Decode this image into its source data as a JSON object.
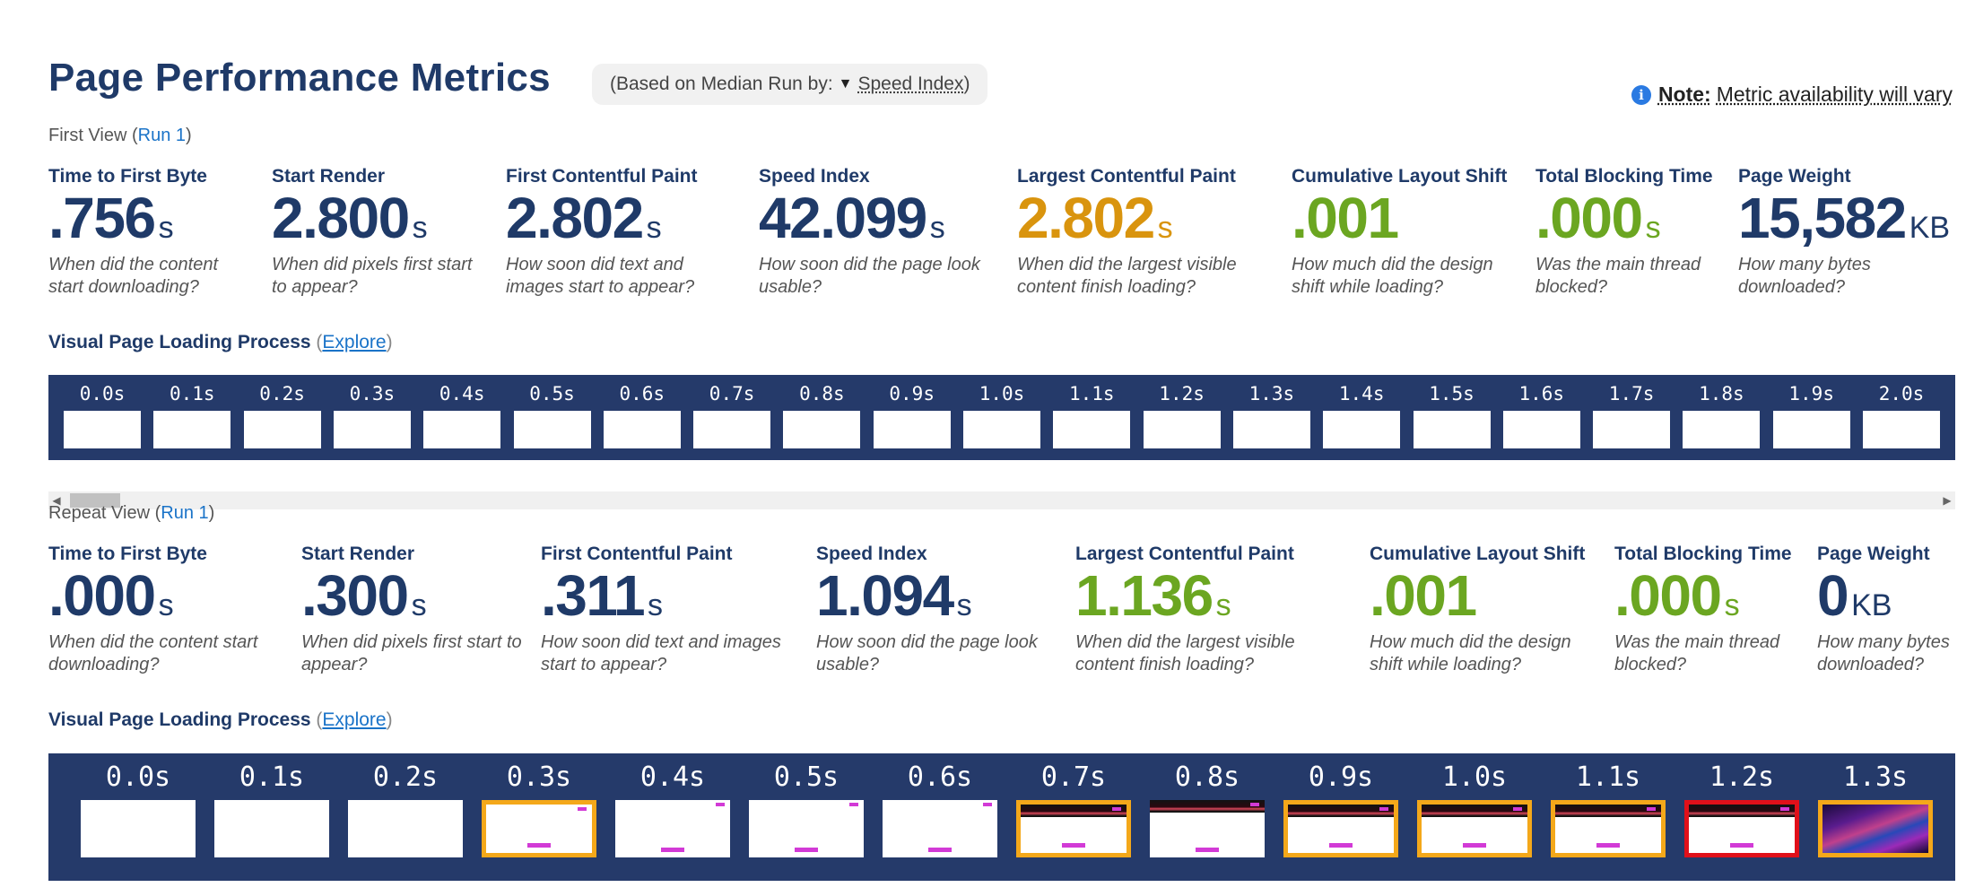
{
  "page": {
    "title": "Page Performance Metrics",
    "median_prefix": "(Based on Median Run by:",
    "median_caret": "▼",
    "median_metric": "Speed Index",
    "median_suffix": ")",
    "note_icon": "i",
    "note_bold": "Note:",
    "note_text": "Metric availability will vary"
  },
  "first_view": {
    "label": "First View (",
    "run": "Run 1",
    "close": ")",
    "metrics": [
      {
        "label": "Time to First Byte",
        "value": ".756",
        "unit": "s",
        "desc": "When did the content start downloading?",
        "color": "#1f3a68"
      },
      {
        "label": "Start Render",
        "value": "2.800",
        "unit": "s",
        "desc": "When did pixels first start to appear?",
        "color": "#1f3a68"
      },
      {
        "label": "First Contentful Paint",
        "value": "2.802",
        "unit": "s",
        "desc": "How soon did text and images start to appear?",
        "color": "#1f3a68"
      },
      {
        "label": "Speed Index",
        "value": "42.099",
        "unit": "s",
        "desc": "How soon did the page look usable?",
        "color": "#1f3a68"
      },
      {
        "label": "Largest Contentful Paint",
        "value": "2.802",
        "unit": "s",
        "desc": "When did the largest visible content finish loading?",
        "color": "#d9940e"
      },
      {
        "label": "Cumulative Layout Shift",
        "value": ".001",
        "unit": "",
        "desc": "How much did the design shift while loading?",
        "color": "#6ba621"
      },
      {
        "label": "Total Blocking Time",
        "value": ".000",
        "unit": "s",
        "desc": "Was the main thread blocked?",
        "color": "#6ba621"
      },
      {
        "label": "Page Weight",
        "value": "15,582",
        "unit": "KB",
        "desc": "How many bytes downloaded?",
        "color": "#1f3a68"
      }
    ],
    "visual_title": "Visual Page Loading Process",
    "visual_open": "(",
    "visual_link": "Explore",
    "visual_close": ")",
    "frames": [
      "0.0s",
      "0.1s",
      "0.2s",
      "0.3s",
      "0.4s",
      "0.5s",
      "0.6s",
      "0.7s",
      "0.8s",
      "0.9s",
      "1.0s",
      "1.1s",
      "1.2s",
      "1.3s",
      "1.4s",
      "1.5s",
      "1.6s",
      "1.7s",
      "1.8s",
      "1.9s",
      "2.0s"
    ]
  },
  "repeat_view": {
    "label": "Repeat View (",
    "run": "Run 1",
    "close": ")",
    "metrics": [
      {
        "label": "Time to First Byte",
        "value": ".000",
        "unit": "s",
        "desc": "When did the content start downloading?",
        "color": "#1f3a68"
      },
      {
        "label": "Start Render",
        "value": ".300",
        "unit": "s",
        "desc": "When did pixels first start to appear?",
        "color": "#1f3a68"
      },
      {
        "label": "First Contentful Paint",
        "value": ".311",
        "unit": "s",
        "desc": "How soon did text and images start to appear?",
        "color": "#1f3a68"
      },
      {
        "label": "Speed Index",
        "value": "1.094",
        "unit": "s",
        "desc": "How soon did the page look usable?",
        "color": "#1f3a68"
      },
      {
        "label": "Largest Contentful Paint",
        "value": "1.136",
        "unit": "s",
        "desc": "When did the largest visible content finish loading?",
        "color": "#6ba621"
      },
      {
        "label": "Cumulative Layout Shift",
        "value": ".001",
        "unit": "",
        "desc": "How much did the design shift while loading?",
        "color": "#6ba621"
      },
      {
        "label": "Total Blocking Time",
        "value": ".000",
        "unit": "s",
        "desc": "Was the main thread blocked?",
        "color": "#6ba621"
      },
      {
        "label": "Page Weight",
        "value": "0",
        "unit": "KB",
        "desc": "How many bytes downloaded?",
        "color": "#1f3a68"
      }
    ],
    "visual_title": "Visual Page Loading Process",
    "visual_open": "(",
    "visual_link": "Explore",
    "visual_close": ")",
    "frames": [
      {
        "time": "0.0s",
        "state": "blank"
      },
      {
        "time": "0.1s",
        "state": "blank"
      },
      {
        "time": "0.2s",
        "state": "blank"
      },
      {
        "time": "0.3s",
        "state": "changed"
      },
      {
        "time": "0.4s",
        "state": "light"
      },
      {
        "time": "0.5s",
        "state": "light"
      },
      {
        "time": "0.6s",
        "state": "light"
      },
      {
        "time": "0.7s",
        "state": "changed-dark"
      },
      {
        "time": "0.8s",
        "state": "dark"
      },
      {
        "time": "0.9s",
        "state": "changed-dark"
      },
      {
        "time": "1.0s",
        "state": "changed-dark"
      },
      {
        "time": "1.1s",
        "state": "changed-dark"
      },
      {
        "time": "1.2s",
        "state": "lcp-dark"
      },
      {
        "time": "1.3s",
        "state": "changed-photo"
      }
    ]
  }
}
